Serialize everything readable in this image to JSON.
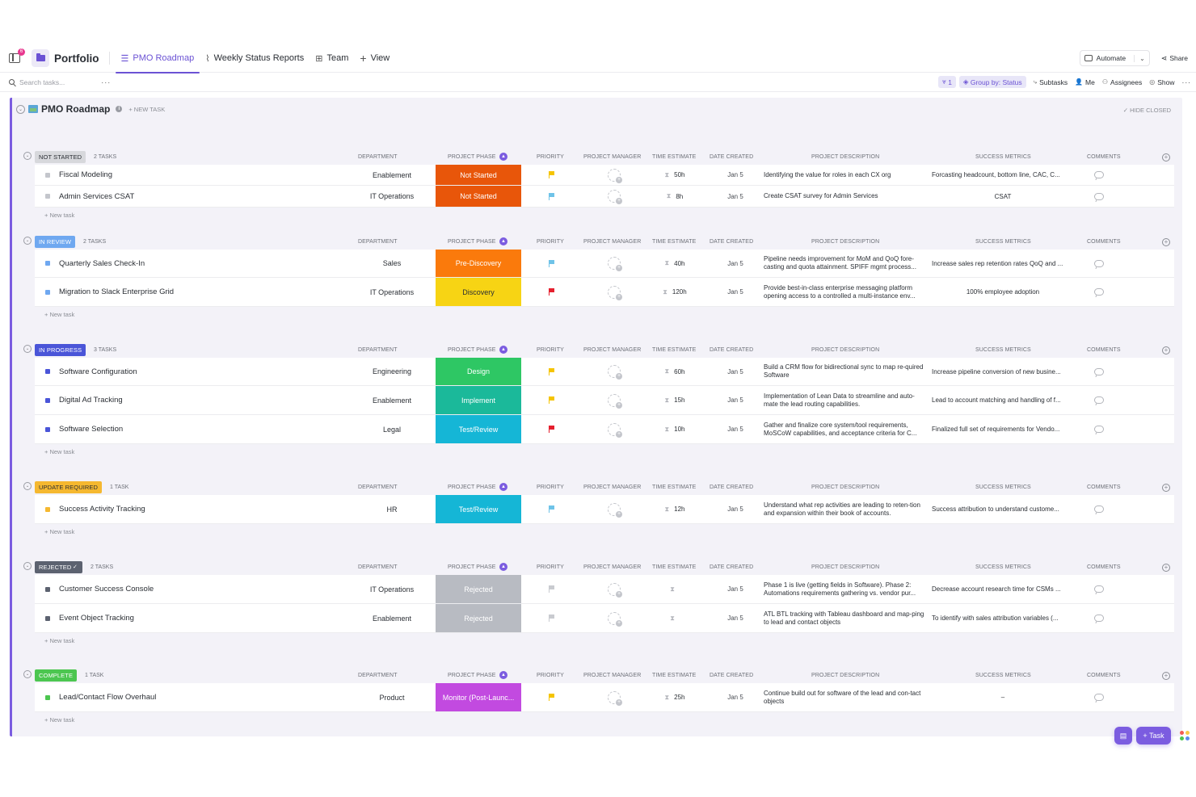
{
  "app": {
    "space_name": "Portfolio",
    "notification_count": "6",
    "tabs": [
      {
        "label": "PMO Roadmap",
        "icon": "list-icon",
        "active": true
      },
      {
        "label": "Weekly Status Reports",
        "icon": "activity-icon",
        "active": false
      },
      {
        "label": "Team",
        "icon": "board-icon",
        "active": false
      },
      {
        "label": "View",
        "icon": "plus-icon",
        "active": false
      }
    ],
    "automate_label": "Automate",
    "share_label": "Share"
  },
  "toolbar": {
    "search_placeholder": "Search tasks...",
    "filter_count": "1",
    "group_by": "Group by: Status",
    "subtasks": "Subtasks",
    "me": "Me",
    "assignees": "Assignees",
    "show": "Show"
  },
  "board": {
    "title": "PMO Roadmap",
    "new_task": "+ NEW TASK",
    "hide_closed": "HIDE CLOSED",
    "new_task_row": "+ New task"
  },
  "columns": {
    "department": "DEPARTMENT",
    "phase": "PROJECT PHASE",
    "priority": "PRIORITY",
    "manager": "PROJECT MANAGER",
    "time": "TIME ESTIMATE",
    "date": "DATE CREATED",
    "description": "PROJECT DESCRIPTION",
    "metrics": "SUCCESS METRICS",
    "comments": "COMMENTS"
  },
  "colors": {
    "accent": "#7b5ce0",
    "flag_yellow": "#f5c400",
    "flag_blue": "#6fc3e8",
    "flag_red": "#e5202e",
    "flag_gray": "#c9cbd0"
  },
  "groups": [
    {
      "status": "NOT STARTED",
      "count": "2 TASKS",
      "badge_bg": "#d7d8dc",
      "badge_fg": "#2a2e34",
      "sq": "#c4c6cc",
      "tasks": [
        {
          "name": "Fiscal Modeling",
          "department": "Enablement",
          "phase": "Not Started",
          "phase_color": "#e8560a",
          "priority": "yellow",
          "time": "50h",
          "date": "Jan 5",
          "description": "Identifying the value for roles in each CX org",
          "metric": "Forcasting headcount, bottom line, CAC, C...",
          "metric_center": false
        },
        {
          "name": "Admin Services CSAT",
          "department": "IT Operations",
          "phase": "Not Started",
          "phase_color": "#e8560a",
          "priority": "blue",
          "time": "8h",
          "date": "Jan 5",
          "description": "Create CSAT survey for Admin Services",
          "metric": "CSAT",
          "metric_center": true
        }
      ]
    },
    {
      "status": "IN REVIEW",
      "count": "2 TASKS",
      "badge_bg": "#6fa8f0",
      "badge_fg": "#ffffff",
      "sq": "#6fa8f0",
      "tasks": [
        {
          "name": "Quarterly Sales Check-In",
          "department": "Sales",
          "phase": "Pre-Discovery",
          "phase_color": "#fa7a0c",
          "priority": "blue",
          "time": "40h",
          "date": "Jan 5",
          "description": "Pipeline needs improvement for MoM and QoQ fore-casting and quota attainment.  SPIFF mgmt process...",
          "metric": "Increase sales rep retention rates QoQ and ...",
          "metric_center": false
        },
        {
          "name": "Migration to Slack Enterprise Grid",
          "department": "IT Operations",
          "phase": "Discovery",
          "phase_color": "#f7d414",
          "phase_text": "#2a2e34",
          "priority": "red",
          "time": "120h",
          "date": "Jan 5",
          "description": "Provide best-in-class enterprise messaging platform opening access to a controlled a multi-instance env...",
          "metric": "100% employee adoption",
          "metric_center": true
        }
      ]
    },
    {
      "status": "IN PROGRESS",
      "count": "3 TASKS",
      "badge_bg": "#4a55d8",
      "badge_fg": "#ffffff",
      "sq": "#4a55d8",
      "tasks": [
        {
          "name": "Software Configuration",
          "department": "Engineering",
          "phase": "Design",
          "phase_color": "#2ec764",
          "priority": "yellow",
          "time": "60h",
          "date": "Jan 5",
          "description": "Build a CRM flow for bidirectional sync to map re-quired Software",
          "metric": "Increase pipeline conversion of new busine...",
          "metric_center": false
        },
        {
          "name": "Digital Ad Tracking",
          "department": "Enablement",
          "phase": "Implement",
          "phase_color": "#1bb99a",
          "priority": "yellow",
          "time": "15h",
          "date": "Jan 5",
          "description": "Implementation of Lean Data to streamline and auto-mate the lead routing capabilities.",
          "metric": "Lead to account matching and handling of f...",
          "metric_center": false
        },
        {
          "name": "Software Selection",
          "department": "Legal",
          "phase": "Test/Review",
          "phase_color": "#15b6d6",
          "priority": "red",
          "time": "10h",
          "date": "Jan 5",
          "description": "Gather and finalize core system/tool requirements, MoSCoW capabilities, and acceptance criteria for C...",
          "metric": "Finalized full set of requirements for Vendo...",
          "metric_center": false
        }
      ]
    },
    {
      "status": "UPDATE REQUIRED",
      "count": "1 TASK",
      "badge_bg": "#f5b830",
      "badge_fg": "#2a2e34",
      "sq": "#f5b830",
      "tasks": [
        {
          "name": "Success Activity Tracking",
          "department": "HR",
          "phase": "Test/Review",
          "phase_color": "#15b6d6",
          "priority": "blue",
          "time": "12h",
          "date": "Jan 5",
          "description": " Understand what rep activities are leading to reten-tion and expansion within their book of accounts.",
          "metric": "Success attribution to understand custome...",
          "metric_center": false
        }
      ]
    },
    {
      "status": "REJECTED",
      "count": "2 TASKS",
      "badge_bg": "#5c6270",
      "badge_fg": "#ffffff",
      "sq": "#5c6270",
      "check": true,
      "tasks": [
        {
          "name": "Customer Success Console",
          "department": "IT Operations",
          "phase": "Rejected",
          "phase_color": "#b8bbc2",
          "priority": "gray",
          "time": "",
          "date": "Jan 5",
          "description": "Phase 1 is live (getting fields in Software).  Phase 2: Automations requirements gathering vs. vendor pur...",
          "metric": "Decrease account research time for CSMs ...",
          "metric_center": false
        },
        {
          "name": "Event Object Tracking",
          "department": "Enablement",
          "phase": "Rejected",
          "phase_color": "#b8bbc2",
          "priority": "gray",
          "time": "",
          "date": "Jan 5",
          "description": "ATL BTL tracking with Tableau dashboard and map-ping to lead and contact objects",
          "metric": "To identify with sales attribution variables (...",
          "metric_center": false
        }
      ]
    },
    {
      "status": "COMPLETE",
      "count": "1 TASK",
      "badge_bg": "#4cc650",
      "badge_fg": "#ffffff",
      "sq": "#4cc650",
      "tasks": [
        {
          "name": "Lead/Contact Flow Overhaul",
          "department": "Product",
          "phase": "Monitor (Post-Launc...",
          "phase_color": "#c24ae0",
          "priority": "yellow",
          "time": "25h",
          "date": "Jan 5",
          "description": "Continue build out for software of the lead and con-tact objects",
          "metric": "–",
          "metric_center": true
        }
      ]
    }
  ],
  "fab": {
    "task_label": "Task"
  }
}
